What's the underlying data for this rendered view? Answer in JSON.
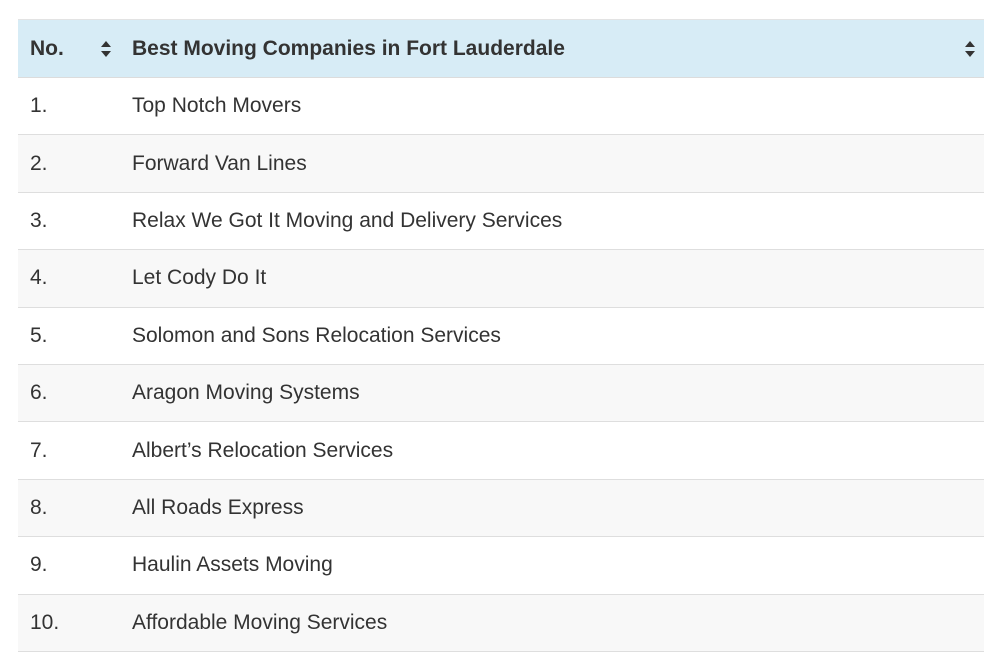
{
  "table": {
    "headers": {
      "number": "No.",
      "company": "Best Moving Companies in Fort Lauderdale"
    },
    "rows": [
      {
        "no": "1.",
        "name": "Top Notch Movers"
      },
      {
        "no": "2.",
        "name": "Forward Van Lines"
      },
      {
        "no": "3.",
        "name": "Relax We Got It Moving and Delivery Services"
      },
      {
        "no": "4.",
        "name": "Let Cody Do It"
      },
      {
        "no": "5.",
        "name": "Solomon and Sons Relocation Services"
      },
      {
        "no": "6.",
        "name": "Aragon Moving Systems"
      },
      {
        "no": "7.",
        "name": "Albert’s Relocation Services"
      },
      {
        "no": "8.",
        "name": "All Roads Express"
      },
      {
        "no": "9.",
        "name": "Haulin Assets Moving"
      },
      {
        "no": "10.",
        "name": "Affordable Moving Services"
      }
    ]
  },
  "colors": {
    "header_bg": "#d7ecf6",
    "stripe_bg": "#f8f8f8",
    "text": "#333333"
  },
  "icons": {
    "sort": "sort-icon"
  }
}
